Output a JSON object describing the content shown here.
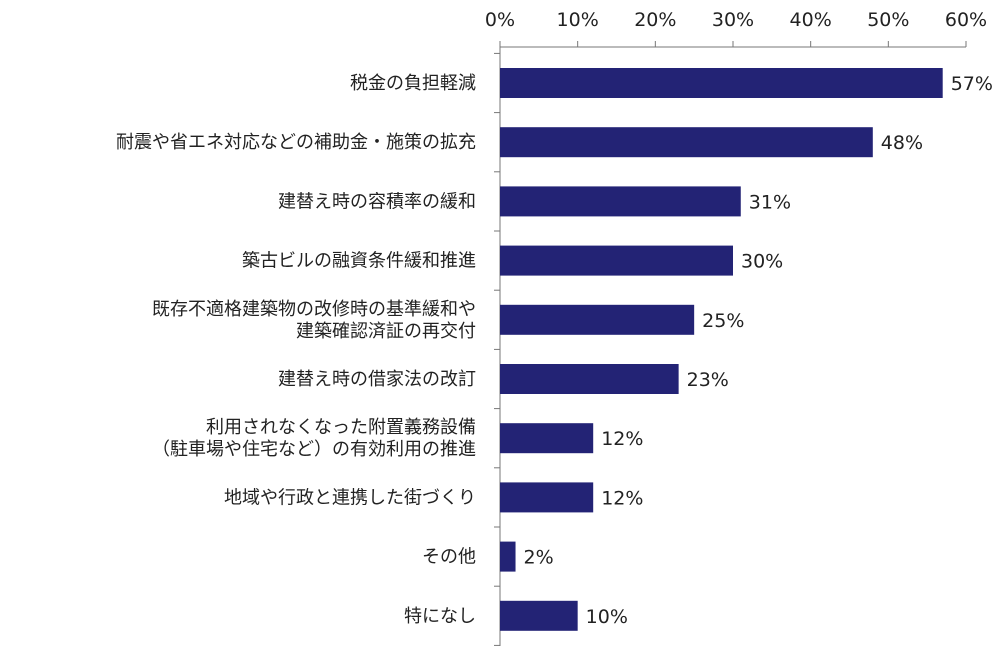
{
  "chart_data": {
    "type": "bar",
    "orientation": "horizontal",
    "categories": [
      [
        "税金の負担軽減"
      ],
      [
        "耐震や省エネ対応などの補助金・施策の拡充"
      ],
      [
        "建替え時の容積率の緩和"
      ],
      [
        "築古ビルの融資条件緩和推進"
      ],
      [
        "既存不適格建築物の改修時の基準緩和や",
        "建築確認済証の再交付"
      ],
      [
        "建替え時の借家法の改訂"
      ],
      [
        "利用されなくなった附置義務設備",
        "（駐車場や住宅など）の有効利用の推進"
      ],
      [
        "地域や行政と連携した街づくり"
      ],
      [
        "その他"
      ],
      [
        "特になし"
      ]
    ],
    "values": [
      57,
      48,
      31,
      30,
      25,
      23,
      12,
      12,
      2,
      10
    ],
    "value_labels": [
      "57%",
      "48%",
      "31%",
      "30%",
      "25%",
      "23%",
      "12%",
      "12%",
      "2%",
      "10%"
    ],
    "xlim": [
      0,
      60
    ],
    "xticks": [
      0,
      10,
      20,
      30,
      40,
      50,
      60
    ],
    "xtick_labels": [
      "0%",
      "10%",
      "20%",
      "30%",
      "40%",
      "50%",
      "60%"
    ],
    "axis_position": "top",
    "grid": false,
    "bar_color": "#232375"
  }
}
